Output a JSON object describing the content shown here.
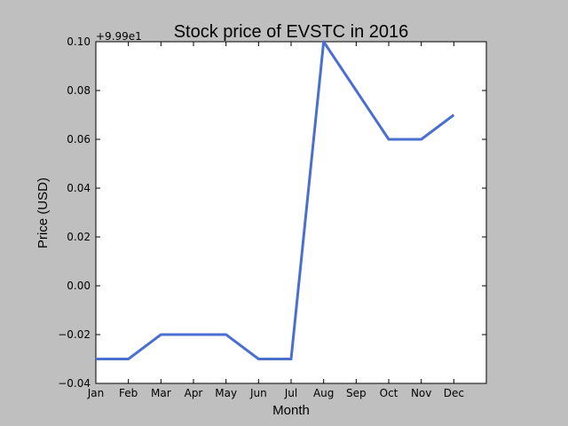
{
  "chart_data": {
    "type": "line",
    "title": "Stock price of EVSTC in 2016",
    "xlabel": "Month",
    "ylabel": "Price (USD)",
    "offset_label": "+9.99e1",
    "categories": [
      "Jan",
      "Feb",
      "Mar",
      "Apr",
      "May",
      "Jun",
      "Jul",
      "Aug",
      "Sep",
      "Oct",
      "Nov",
      "Dec"
    ],
    "series": [
      {
        "values": [
          99.87,
          99.87,
          99.88,
          99.88,
          99.88,
          99.87,
          99.87,
          100.0,
          99.98,
          99.96,
          99.96,
          99.97
        ],
        "color": "#4a6fcf"
      }
    ],
    "ylim": [
      99.86,
      100.0
    ],
    "yticks": [
      -0.04,
      -0.02,
      0.0,
      0.02,
      0.04,
      0.06,
      0.08,
      0.1
    ],
    "ytick_labels": [
      "−0.04",
      "−0.02",
      "0.00",
      "0.02",
      "0.04",
      "0.06",
      "0.08",
      "0.10"
    ],
    "grid": false,
    "colors": {
      "figure_background": "#bfbfbf",
      "plot_background": "#ffffff",
      "line": "#4a6fcf"
    }
  }
}
